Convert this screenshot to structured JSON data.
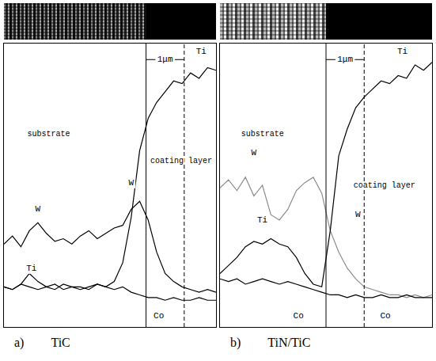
{
  "chart_data": [
    {
      "type": "line",
      "panel": "a)",
      "title": "TiC",
      "tick_labels": false,
      "xlim": [
        0,
        100
      ],
      "ylim": [
        -6,
        100
      ],
      "x": [
        0,
        4,
        8,
        12,
        16,
        20,
        24,
        28,
        32,
        36,
        40,
        44,
        48,
        52,
        56,
        60,
        64,
        68,
        72,
        76,
        80,
        84,
        88,
        92,
        96,
        100
      ],
      "series": [
        {
          "name": "W",
          "color": "#000000",
          "values": [
            25,
            28,
            24,
            30,
            33,
            29,
            26,
            27,
            25,
            28,
            30,
            27,
            29,
            31,
            32,
            38,
            41,
            34,
            22,
            14,
            11,
            9,
            8,
            7,
            8,
            7
          ]
        },
        {
          "name": "Ti",
          "color": "#000000",
          "values": [
            9,
            8,
            10,
            14,
            11,
            9,
            8,
            10,
            9,
            8,
            9,
            10,
            9,
            11,
            18,
            35,
            60,
            72,
            78,
            82,
            86,
            85,
            89,
            87,
            91,
            90
          ]
        },
        {
          "name": "Co",
          "color": "#000000",
          "values": [
            9,
            8,
            10,
            9,
            8,
            9,
            10,
            8,
            9,
            9,
            8,
            10,
            9,
            8,
            9,
            7,
            6,
            5,
            5,
            4,
            5,
            4,
            4,
            5,
            4,
            4
          ]
        }
      ],
      "vlines": [
        {
          "x": 67,
          "line_style": "solid"
        },
        {
          "x": 85,
          "line_style": "dashed"
        }
      ],
      "span_label": {
        "text": "1μm",
        "y": 94
      },
      "annotations": [
        {
          "text": "substrate",
          "x": 11,
          "y": 66
        },
        {
          "text": "coating layer",
          "x": 69,
          "y": 56
        },
        {
          "text": "W",
          "x": 16,
          "y": 38
        },
        {
          "text": "Ti",
          "x": 13,
          "y": 16
        },
        {
          "text": "W",
          "x": 60,
          "y": 48
        },
        {
          "text": "Co",
          "x": 73,
          "y": -2
        },
        {
          "text": "Ti",
          "x": 93,
          "y": 97
        }
      ]
    },
    {
      "type": "line",
      "panel": "b)",
      "title": "TiN/TiC",
      "tick_labels": false,
      "xlim": [
        0,
        100
      ],
      "ylim": [
        -6,
        100
      ],
      "x": [
        0,
        4,
        8,
        12,
        16,
        20,
        24,
        28,
        32,
        36,
        40,
        44,
        48,
        52,
        56,
        60,
        64,
        68,
        72,
        76,
        80,
        84,
        88,
        92,
        96,
        100
      ],
      "series": [
        {
          "name": "W",
          "color": "#8c8c8c",
          "values": [
            46,
            49,
            45,
            50,
            43,
            47,
            36,
            34,
            38,
            45,
            48,
            50,
            44,
            30,
            22,
            16,
            12,
            9,
            8,
            7,
            6,
            6,
            5,
            6,
            5,
            6
          ]
        },
        {
          "name": "Ti",
          "color": "#000000",
          "values": [
            14,
            17,
            20,
            24,
            26,
            25,
            27,
            25,
            24,
            20,
            14,
            10,
            9,
            30,
            58,
            68,
            76,
            80,
            83,
            86,
            85,
            88,
            87,
            92,
            90,
            93
          ]
        },
        {
          "name": "Co",
          "color": "#000000",
          "values": [
            12,
            11,
            12,
            10,
            11,
            12,
            11,
            10,
            11,
            10,
            9,
            8,
            7,
            6,
            6,
            5,
            6,
            5,
            5,
            6,
            5,
            5,
            6,
            5,
            5,
            5
          ]
        }
      ],
      "vlines": [
        {
          "x": 50,
          "line_style": "solid"
        },
        {
          "x": 68,
          "line_style": "dashed"
        }
      ],
      "span_label": {
        "text": "1μm",
        "y": 94
      },
      "annotations": [
        {
          "text": "substrate",
          "x": 10,
          "y": 66
        },
        {
          "text": "coating layer",
          "x": 63,
          "y": 47
        },
        {
          "text": "W",
          "x": 16,
          "y": 59
        },
        {
          "text": "Ti",
          "x": 20,
          "y": 34
        },
        {
          "text": "W",
          "x": 65,
          "y": 36
        },
        {
          "text": "Co",
          "x": 37,
          "y": -2
        },
        {
          "text": "Co",
          "x": 78,
          "y": -2
        },
        {
          "text": "Ti",
          "x": 86,
          "y": 97
        }
      ]
    }
  ]
}
